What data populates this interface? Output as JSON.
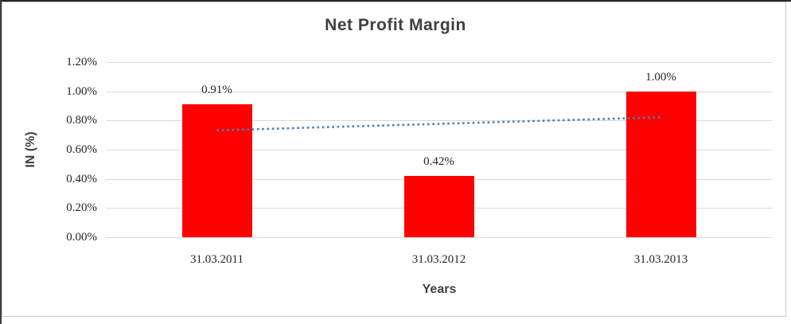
{
  "chart_data": {
    "type": "bar",
    "title": "Net Profit Margin",
    "xlabel": "Years",
    "ylabel": "IN (%)",
    "categories": [
      "31.03.2011",
      "31.03.2012",
      "31.03.2013"
    ],
    "values": [
      0.91,
      0.42,
      1.0
    ],
    "data_labels": [
      "0.91%",
      "0.42%",
      "1.00%"
    ],
    "y_ticks": [
      "0.00%",
      "0.20%",
      "0.40%",
      "0.60%",
      "0.80%",
      "1.00%",
      "1.20%"
    ],
    "ylim": [
      0,
      1.2
    ],
    "grid": true,
    "legend": false,
    "trendline": {
      "type": "linear",
      "style": "dotted",
      "start_value": 0.732,
      "end_value": 0.822
    },
    "colors": {
      "bar": "#FF0000",
      "trendline": "#4A7EBB",
      "gridline": "#D9D9D9",
      "title_text": "#404040",
      "axis_title_text": "#404040",
      "tick_text": "#262626"
    }
  }
}
